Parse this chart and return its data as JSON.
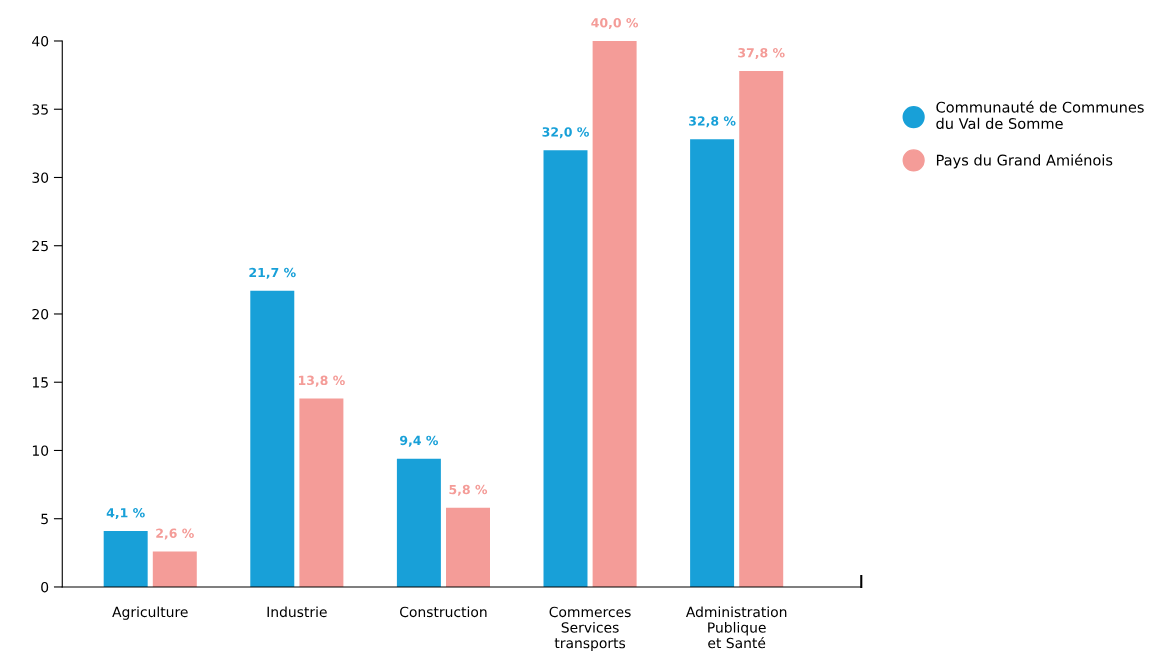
{
  "chart_data": {
    "type": "bar",
    "categories": [
      "Agriculture",
      "Industrie",
      "Construction",
      "Commerces\nServices\ntransports",
      "Administration\nPublique\net Santé"
    ],
    "series": [
      {
        "name": "Communauté de Communes\ndu Val de Somme",
        "color": "#18a0d8",
        "values": [
          4.1,
          21.7,
          9.4,
          32.0,
          32.8
        ],
        "value_labels": [
          "4,1 %",
          "21,7 %",
          "9,4 %",
          "32,0 %",
          "32,8 %"
        ]
      },
      {
        "name": "Pays du Grand Amiénois",
        "color": "#f49c98",
        "values": [
          2.6,
          13.8,
          5.8,
          40.0,
          37.8
        ],
        "value_labels": [
          "2,6 %",
          "13,8 %",
          "5,8 %",
          "40,0 %",
          "37,8 %"
        ]
      }
    ],
    "ylim": [
      0,
      40
    ],
    "yticks": [
      0,
      5,
      10,
      15,
      20,
      25,
      30,
      35,
      40
    ],
    "grid": false,
    "legend": "right"
  }
}
